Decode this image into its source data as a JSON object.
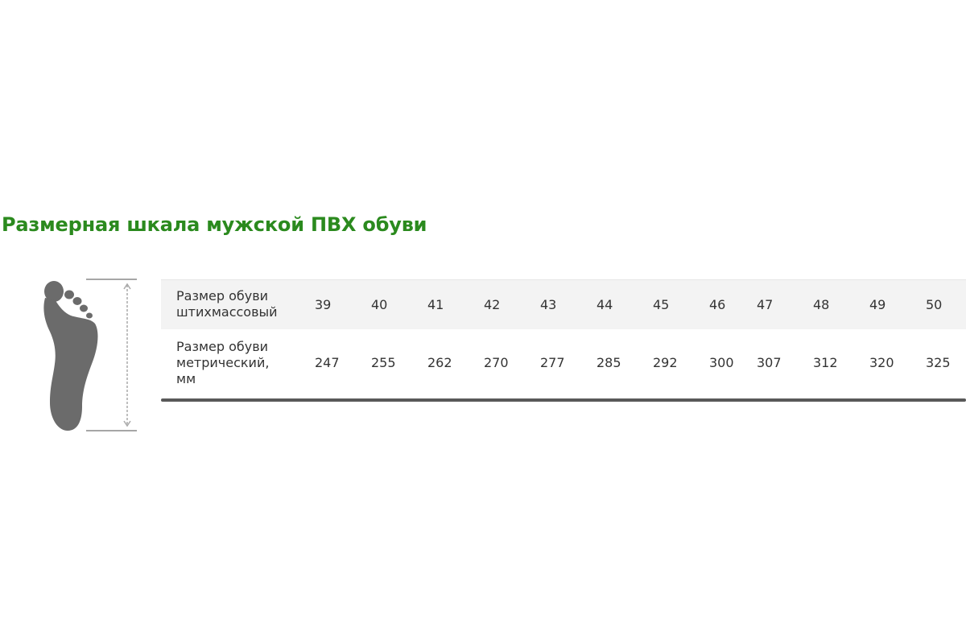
{
  "title": "Размерная шкала мужской ПВХ обуви",
  "icon": "foot-length-icon",
  "colors": {
    "title": "#2b8a1e",
    "row_alt": "#f3f3f3",
    "rule": "#595959",
    "foot": "#6b6b6b"
  },
  "table": {
    "rows": [
      {
        "label_lines": [
          "Размер обуви",
          "штихмассовый"
        ],
        "values": [
          "39",
          "40",
          "41",
          "42",
          "43",
          "44",
          "45",
          "46",
          "47",
          "48",
          "49",
          "50"
        ]
      },
      {
        "label_lines": [
          "Размер обуви",
          "метрический,",
          "мм"
        ],
        "values": [
          "247",
          "255",
          "262",
          "270",
          "277",
          "285",
          "292",
          "300",
          "307",
          "312",
          "320",
          "325"
        ]
      }
    ]
  }
}
